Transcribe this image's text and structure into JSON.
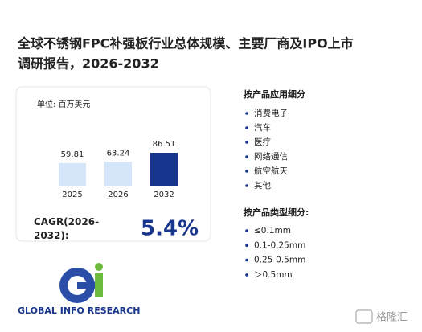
{
  "title_line1": "全球不锈钢FPC补强板行业总体规模、主要厂商及IPO上市",
  "title_line2": "调研报告，2026-2032",
  "chart_data": {
    "type": "bar",
    "unit_label": "单位: 百万美元",
    "categories": [
      "2025",
      "2026",
      "2032"
    ],
    "values": [
      59.81,
      63.24,
      86.51
    ],
    "colors": [
      "#d5e5fa",
      "#d5e5fa",
      "#17358c"
    ]
  },
  "cagr_label": "CAGR(2026-2032):",
  "cagr_value": "5.4%",
  "application_heading": "按产品应用细分",
  "applications": [
    "消费电子",
    "汽车",
    "医疗",
    "网络通信",
    "航空航天",
    "其他"
  ],
  "type_heading": "按产品类型细分:",
  "types": [
    "≤0.1mm",
    "0.1-0.25mm",
    "0.25-0.5mm",
    "＞0.5mm"
  ],
  "logo_text": "GLOBAL INFO RESEARCH",
  "watermark": "格隆汇"
}
